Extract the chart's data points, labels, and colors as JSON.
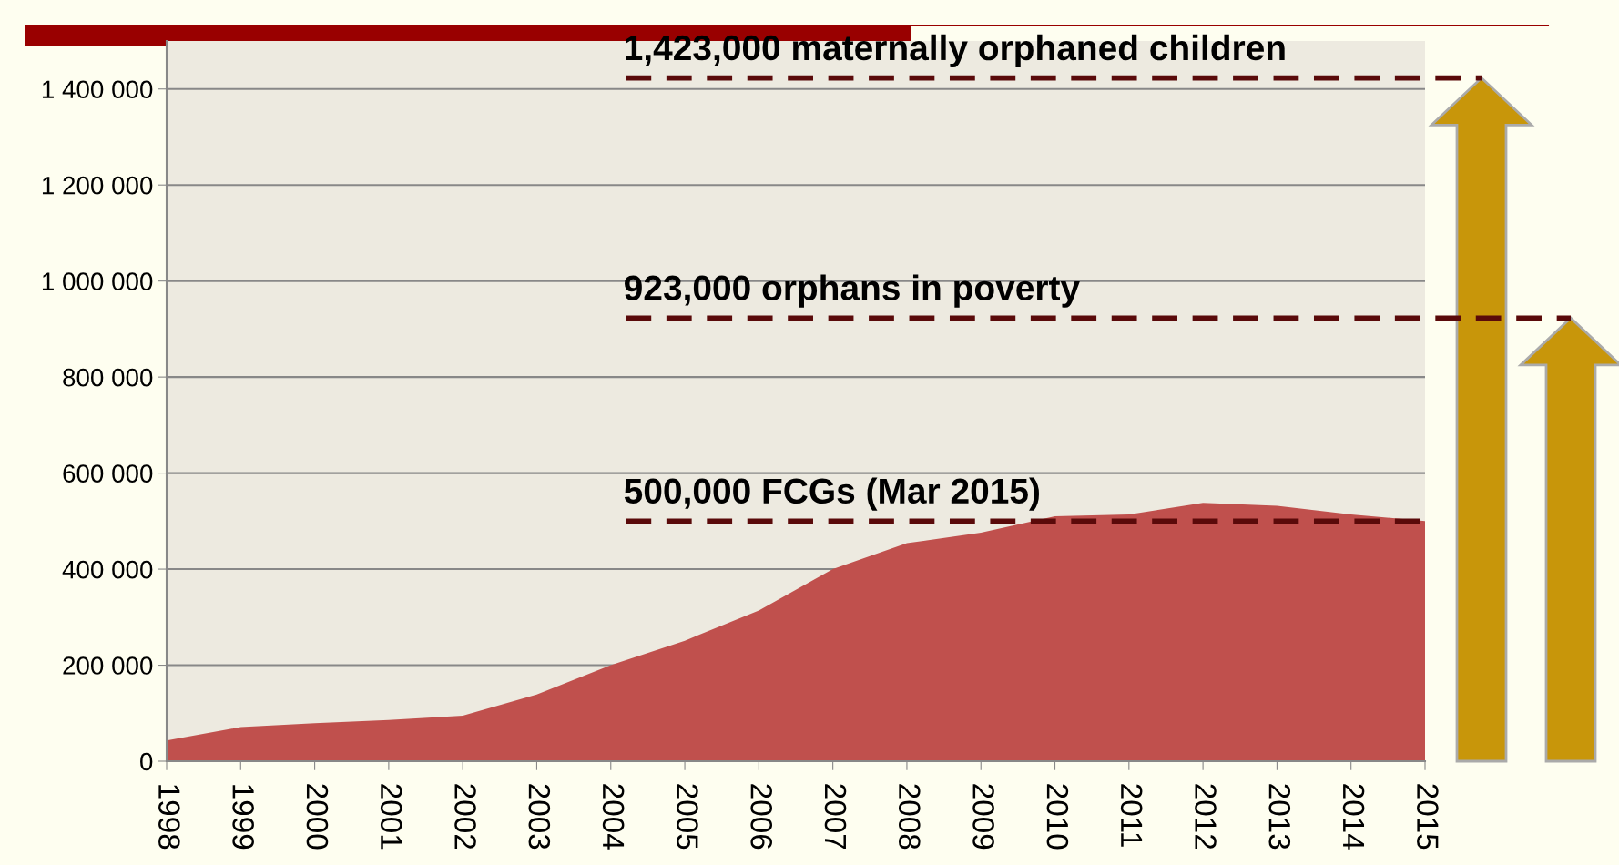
{
  "chart_data": {
    "type": "area",
    "x": [
      1998,
      1999,
      2000,
      2001,
      2002,
      2003,
      2004,
      2005,
      2006,
      2007,
      2008,
      2009,
      2010,
      2011,
      2012,
      2013,
      2014,
      2015
    ],
    "series": [
      {
        "color": "#c0504d",
        "values": [
          43000,
          71000,
          79000,
          86000,
          95000,
          139000,
          200000,
          251000,
          314000,
          400000,
          454000,
          476000,
          510000,
          514000,
          538000,
          532000,
          514000,
          500000
        ]
      }
    ],
    "xlim": [
      1998,
      2015
    ],
    "xticks": [
      1998,
      1999,
      2000,
      2001,
      2002,
      2003,
      2004,
      2005,
      2006,
      2007,
      2008,
      2009,
      2010,
      2011,
      2012,
      2013,
      2014,
      2015
    ],
    "ylim": [
      0,
      1500000
    ],
    "yticks": [
      {
        "value": 0,
        "label": "0"
      },
      {
        "value": 200000,
        "label": "200 000"
      },
      {
        "value": 400000,
        "label": "400 000"
      },
      {
        "value": 600000,
        "label": "600 000"
      },
      {
        "value": 800000,
        "label": "800 000"
      },
      {
        "value": 1000000,
        "label": "1 000 000"
      },
      {
        "value": 1200000,
        "label": "1 200 000"
      },
      {
        "value": 1400000,
        "label": "1 400 000"
      }
    ],
    "grid": "y",
    "legend": false,
    "ref_lines": [
      {
        "axis": "y",
        "value": 1423000,
        "label": "1,423,000 maternally orphaned children",
        "color": "#5a0a0a",
        "line_style": "dashed"
      },
      {
        "axis": "y",
        "value": 923000,
        "label": "923,000 orphans in poverty",
        "color": "#5a0a0a",
        "line_style": "dashed"
      },
      {
        "axis": "y",
        "value": 500000,
        "label": "500,000 FCGs (Mar 2015)",
        "color": "#5a0a0a",
        "line_style": "dashed"
      }
    ]
  }
}
